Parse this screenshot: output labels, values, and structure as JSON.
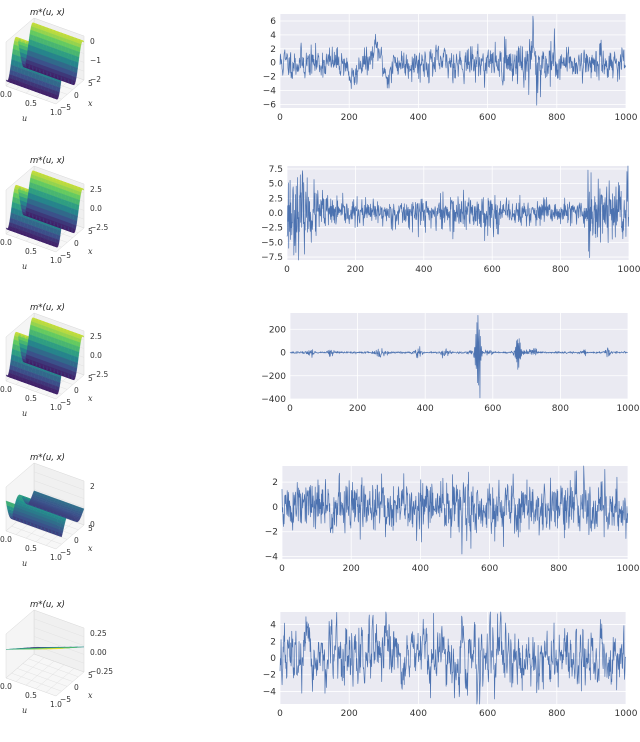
{
  "figure": {
    "rows": [
      {
        "surface": {
          "title": "m*(u, x)",
          "shape": "sin",
          "ztick_labels": [
            "0",
            "−1",
            "−2"
          ],
          "u_tick_labels": [
            "0.0",
            "0.5",
            "1.0"
          ],
          "x_tick_labels": [
            "5",
            "0",
            "−5"
          ],
          "u_label": "u",
          "x_label": "x"
        },
        "series": {
          "type": "line",
          "x_range": [
            0,
            1000
          ],
          "xticks": [
            0,
            200,
            400,
            600,
            800,
            1000
          ],
          "ylim": [
            -6.5,
            7
          ],
          "yticks": [
            -6,
            -4,
            -2,
            0,
            2,
            4,
            6
          ],
          "ytick_labels": [
            "−6",
            "−4",
            "−2",
            "0",
            "2",
            "4",
            "6"
          ],
          "color": "#4c72b0",
          "pattern": "bursty",
          "seed": 11
        }
      },
      {
        "surface": {
          "title": "m*(u, x)",
          "shape": "sin",
          "ztick_labels": [
            "2.5",
            "0.0",
            "−2.5"
          ],
          "u_tick_labels": [
            "0.0",
            "0.5",
            "1.0"
          ],
          "x_tick_labels": [
            "5",
            "0",
            "−5"
          ],
          "u_label": "u",
          "x_label": "x"
        },
        "series": {
          "type": "line",
          "x_range": [
            0,
            1000
          ],
          "xticks": [
            0,
            200,
            400,
            600,
            800,
            1000
          ],
          "ylim": [
            -8,
            8
          ],
          "yticks": [
            -7.5,
            -5,
            -2.5,
            0,
            2.5,
            5,
            7.5
          ],
          "ytick_labels": [
            "−7.5",
            "−5.0",
            "−2.5",
            "0.0",
            "2.5",
            "5.0",
            "7.5"
          ],
          "color": "#4c72b0",
          "pattern": "edges",
          "seed": 23
        }
      },
      {
        "surface": {
          "title": "m*(u, x)",
          "shape": "sin",
          "ztick_labels": [
            "2.5",
            "0.0",
            "−2.5"
          ],
          "u_tick_labels": [
            "0.0",
            "0.5",
            "1.0"
          ],
          "x_tick_labels": [
            "5",
            "0",
            "−5"
          ],
          "u_label": "u",
          "x_label": "x"
        },
        "series": {
          "type": "line",
          "x_range": [
            0,
            1000
          ],
          "xticks": [
            0,
            200,
            400,
            600,
            800,
            1000
          ],
          "ylim": [
            -400,
            340
          ],
          "yticks": [
            -400,
            -200,
            0,
            200
          ],
          "ytick_labels": [
            "−400",
            "−200",
            "0",
            "200"
          ],
          "color": "#4c72b0",
          "pattern": "spiky",
          "seed": 37
        }
      },
      {
        "surface": {
          "title": "m*(u, x)",
          "shape": "wave",
          "ztick_labels": [
            "2",
            "0"
          ],
          "u_tick_labels": [
            "0.0",
            "0.5",
            "1.0"
          ],
          "x_tick_labels": [
            "5",
            "0",
            "−5"
          ],
          "u_label": "u",
          "x_label": "x"
        },
        "series": {
          "type": "line",
          "x_range": [
            0,
            1000
          ],
          "xticks": [
            0,
            200,
            400,
            600,
            800,
            1000
          ],
          "ylim": [
            -4.2,
            3.3
          ],
          "yticks": [
            -4,
            -2,
            0,
            2
          ],
          "ytick_labels": [
            "−4",
            "−2",
            "0",
            "2"
          ],
          "color": "#4c72b0",
          "pattern": "uniform",
          "seed": 51
        }
      },
      {
        "surface": {
          "title": "m*(u, x)",
          "shape": "plane",
          "ztick_labels": [
            "0.25",
            "0.00",
            "−0.25"
          ],
          "u_tick_labels": [
            "0.0",
            "0.5",
            "1.0"
          ],
          "x_tick_labels": [
            "5",
            "0",
            "−5"
          ],
          "u_label": "u",
          "x_label": "x"
        },
        "series": {
          "type": "line",
          "x_range": [
            0,
            1000
          ],
          "xticks": [
            0,
            200,
            400,
            600,
            800,
            1000
          ],
          "ylim": [
            -5.5,
            5.5
          ],
          "yticks": [
            -4,
            -2,
            0,
            2,
            4
          ],
          "ytick_labels": [
            "−4",
            "−2",
            "0",
            "2",
            "4"
          ],
          "color": "#4c72b0",
          "pattern": "wide",
          "seed": 67
        }
      }
    ]
  },
  "chart_data": [
    {
      "type": "line",
      "title": "",
      "xlabel": "",
      "ylabel": "",
      "xlim": [
        0,
        1000
      ],
      "ylim": [
        -6.5,
        7
      ],
      "grid": true,
      "series": [
        {
          "values_note_hidden": null
        }
      ]
    },
    {
      "type": "line",
      "title": "",
      "xlabel": "",
      "ylabel": "",
      "xlim": [
        0,
        1000
      ],
      "ylim": [
        -8,
        8
      ],
      "grid": true
    },
    {
      "type": "line",
      "title": "",
      "xlabel": "",
      "ylabel": "",
      "xlim": [
        0,
        1000
      ],
      "ylim": [
        -400,
        340
      ],
      "grid": true
    },
    {
      "type": "line",
      "title": "",
      "xlabel": "",
      "ylabel": "",
      "xlim": [
        0,
        1000
      ],
      "ylim": [
        -4.2,
        3.3
      ],
      "grid": true
    },
    {
      "type": "line",
      "title": "",
      "xlabel": "",
      "ylabel": "",
      "xlim": [
        0,
        1000
      ],
      "ylim": [
        -5.5,
        5.5
      ],
      "grid": true
    }
  ]
}
